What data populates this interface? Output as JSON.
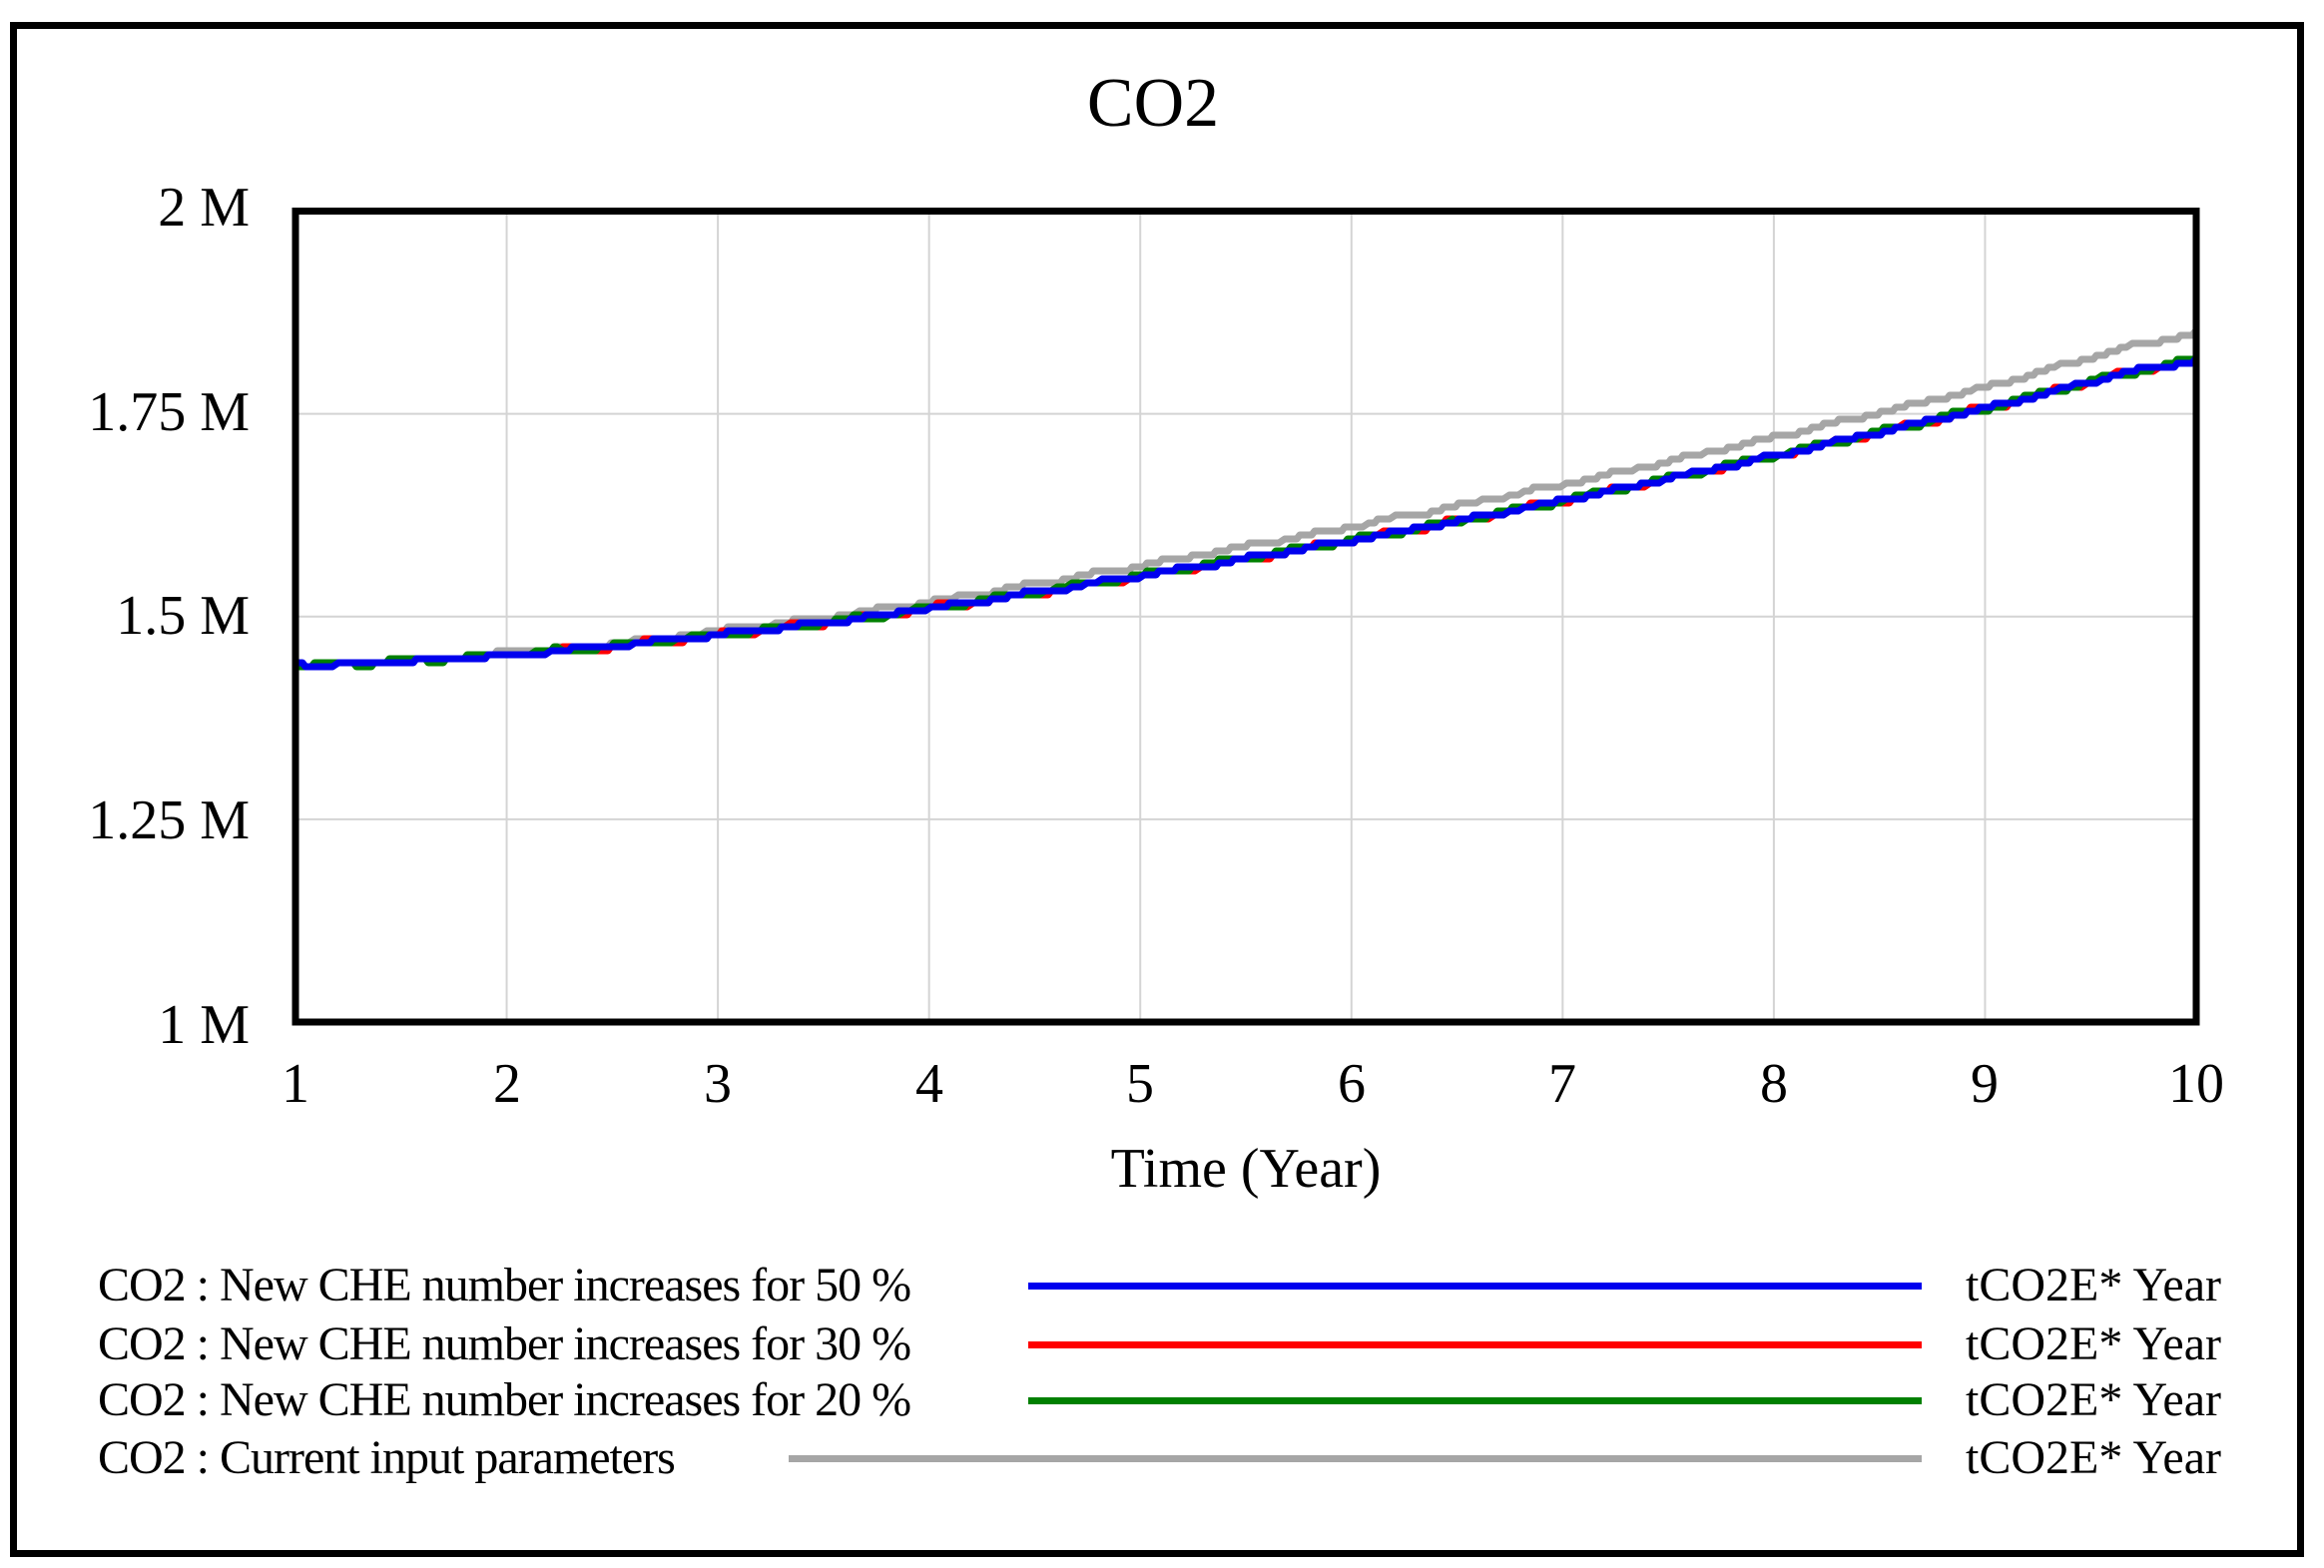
{
  "window": {
    "background": "#ffffff",
    "border_color": "#000000"
  },
  "chart_data": {
    "type": "line",
    "title": "CO2",
    "xlabel": "Time (Year)",
    "x_ticks": [
      "1",
      "2",
      "3",
      "4",
      "5",
      "6",
      "7",
      "8",
      "9",
      "10"
    ],
    "y_ticks": [
      "2 M",
      "1.75 M",
      "1.5 M",
      "1.25 M",
      "1 M"
    ],
    "xlim": [
      1,
      10
    ],
    "ylim_millions": [
      1,
      2
    ],
    "grid": "on",
    "legend_position": "bottom",
    "x_years": [
      1,
      2,
      3,
      4,
      5,
      6,
      7,
      8,
      9,
      10
    ],
    "series": [
      {
        "name": "CO2 : New CHE number increases for 50 %",
        "color": "#0000ee",
        "unit": "tCO2E* Year",
        "values_millions": [
          1.44,
          1.453,
          1.477,
          1.51,
          1.55,
          1.594,
          1.643,
          1.698,
          1.757,
          1.815
        ]
      },
      {
        "name": "CO2 : New CHE number increases for 30 %",
        "color": "#ff0000",
        "unit": "tCO2E* Year",
        "values_millions": [
          1.44,
          1.453,
          1.477,
          1.51,
          1.55,
          1.594,
          1.643,
          1.698,
          1.757,
          1.815
        ]
      },
      {
        "name": "CO2 : New CHE number increases for 20 %",
        "color": "#008000",
        "unit": "tCO2E* Year",
        "values_millions": [
          1.44,
          1.453,
          1.477,
          1.51,
          1.55,
          1.594,
          1.643,
          1.698,
          1.757,
          1.815
        ]
      },
      {
        "name": "CO2 : Current input parameters",
        "color": "#a6a6a6",
        "unit": "tCO2E* Year",
        "values_millions": [
          1.44,
          1.455,
          1.482,
          1.518,
          1.563,
          1.611,
          1.663,
          1.721,
          1.783,
          1.848
        ]
      }
    ],
    "colors": {
      "grid": "#d4d4d4",
      "frame": "#000000",
      "text": "#000000"
    }
  }
}
